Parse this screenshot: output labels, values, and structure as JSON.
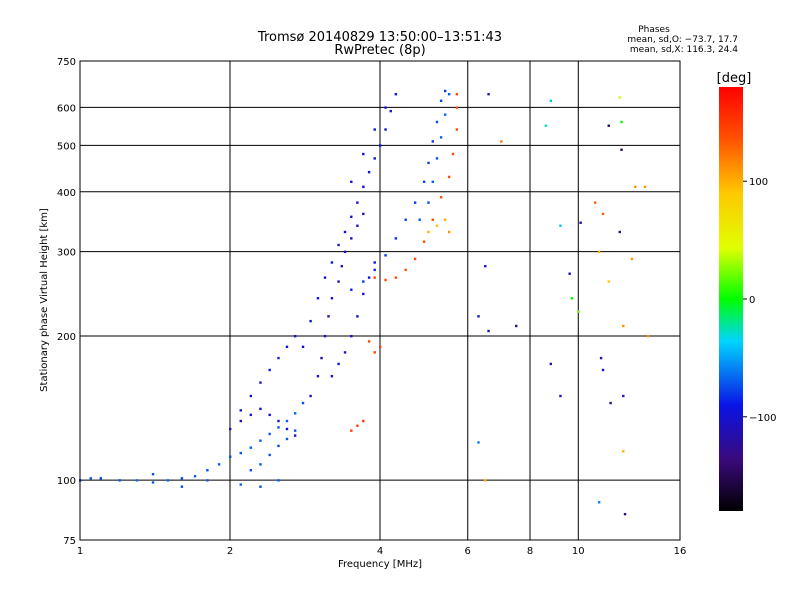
{
  "chart_data": {
    "type": "scatter",
    "title": "Tromsø 20140829 13:50:00–13:51:43",
    "subtitle": "RwPretec (8p)",
    "xlabel": "Frequency [MHz]",
    "ylabel": "Stationary phase Virtual Height [km]",
    "x_scale": "log",
    "y_scale": "log",
    "xlim": [
      1,
      16
    ],
    "ylim": [
      75,
      750
    ],
    "x_ticks": [
      1,
      2,
      4,
      6,
      8,
      10,
      16
    ],
    "y_ticks": [
      75,
      100,
      200,
      300,
      400,
      500,
      600,
      750
    ],
    "grid": true,
    "stats": {
      "heading": "Phases",
      "line_o": "mean, sd,O: −73.7, 17.7",
      "line_x": "mean, sd,X: 116.3, 24.4"
    },
    "colorbar": {
      "label": "[deg]",
      "range": [
        -180,
        180
      ],
      "ticks": [
        100,
        0,
        -100
      ]
    },
    "series": [
      {
        "points": [
          [
            1.0,
            100,
            -80
          ],
          [
            1.05,
            101,
            -70
          ],
          [
            1.1,
            101,
            -75
          ],
          [
            1.2,
            100,
            -70
          ],
          [
            1.3,
            100,
            -65
          ],
          [
            1.4,
            99,
            -70
          ],
          [
            1.5,
            100,
            -65
          ],
          [
            1.6,
            101,
            -75
          ],
          [
            1.7,
            102,
            -70
          ],
          [
            1.8,
            105,
            -72
          ],
          [
            1.9,
            108,
            -70
          ],
          [
            2.0,
            112,
            -75
          ],
          [
            2.1,
            114,
            -72
          ],
          [
            2.2,
            117,
            -70
          ],
          [
            2.3,
            121,
            -68
          ],
          [
            2.4,
            125,
            -70
          ],
          [
            2.5,
            129,
            -72
          ],
          [
            2.6,
            133,
            -70
          ],
          [
            2.7,
            138,
            -68
          ],
          [
            2.8,
            145,
            -75
          ],
          [
            2.2,
            105,
            -75
          ],
          [
            2.3,
            108,
            -70
          ],
          [
            2.4,
            113,
            -72
          ],
          [
            2.5,
            118,
            -75
          ],
          [
            2.6,
            122,
            -70
          ],
          [
            2.7,
            127,
            -72
          ],
          [
            1.4,
            103,
            -72
          ],
          [
            1.6,
            97,
            -75
          ],
          [
            1.8,
            100,
            -70
          ],
          [
            2.1,
            98,
            -68
          ],
          [
            2.3,
            97,
            -75
          ],
          [
            2.5,
            100,
            -70
          ],
          [
            2.1,
            140,
            -90
          ],
          [
            2.2,
            150,
            -95
          ],
          [
            2.3,
            160,
            -92
          ],
          [
            2.4,
            170,
            -88
          ],
          [
            2.5,
            180,
            -85
          ],
          [
            2.6,
            190,
            -90
          ],
          [
            2.7,
            200,
            -95
          ],
          [
            2.0,
            128,
            -100
          ],
          [
            2.1,
            133,
            -105
          ],
          [
            2.2,
            137,
            -100
          ],
          [
            2.3,
            141,
            -102
          ],
          [
            2.4,
            137,
            -98
          ],
          [
            2.5,
            133,
            -100
          ],
          [
            2.6,
            128,
            -104
          ],
          [
            2.7,
            124,
            -100
          ]
        ]
      },
      {
        "points": [
          [
            2.9,
            150,
            -110
          ],
          [
            3.0,
            165,
            -112
          ],
          [
            3.05,
            180,
            -115
          ],
          [
            3.1,
            200,
            -110
          ],
          [
            3.15,
            220,
            -108
          ],
          [
            3.2,
            240,
            -112
          ],
          [
            3.3,
            260,
            -115
          ],
          [
            3.35,
            280,
            -110
          ],
          [
            3.4,
            300,
            -108
          ],
          [
            3.5,
            320,
            -112
          ],
          [
            3.6,
            340,
            -110
          ],
          [
            3.7,
            360,
            -115
          ],
          [
            2.8,
            190,
            -95
          ],
          [
            2.9,
            215,
            -98
          ],
          [
            3.0,
            240,
            -100
          ],
          [
            3.1,
            265,
            -95
          ],
          [
            3.2,
            285,
            -98
          ],
          [
            3.3,
            310,
            -100
          ],
          [
            3.2,
            165,
            -100
          ],
          [
            3.3,
            175,
            -98
          ],
          [
            3.4,
            185,
            -100
          ],
          [
            3.5,
            200,
            -102
          ],
          [
            3.6,
            220,
            -100
          ],
          [
            3.7,
            245,
            -98
          ],
          [
            3.8,
            265,
            -100
          ],
          [
            3.9,
            285,
            -95
          ],
          [
            3.4,
            330,
            -95
          ],
          [
            3.5,
            355,
            -98
          ],
          [
            3.6,
            380,
            -100
          ],
          [
            3.7,
            410,
            -95
          ],
          [
            3.8,
            440,
            -98
          ],
          [
            3.9,
            470,
            -100
          ],
          [
            4.0,
            500,
            -95
          ],
          [
            4.1,
            540,
            -98
          ],
          [
            4.2,
            590,
            -100
          ],
          [
            4.3,
            640,
            -96
          ],
          [
            3.5,
            420,
            -100
          ],
          [
            3.7,
            480,
            -100
          ],
          [
            3.9,
            540,
            -98
          ],
          [
            4.1,
            600,
            -95
          ]
        ]
      },
      {
        "points": [
          [
            3.5,
            250,
            -85
          ],
          [
            3.7,
            260,
            -80
          ],
          [
            3.9,
            275,
            -85
          ],
          [
            4.1,
            295,
            -80
          ],
          [
            4.3,
            320,
            -82
          ],
          [
            4.5,
            350,
            -78
          ],
          [
            4.7,
            380,
            -80
          ],
          [
            4.9,
            420,
            -75
          ],
          [
            5.0,
            460,
            -78
          ],
          [
            5.1,
            510,
            -80
          ],
          [
            5.2,
            560,
            -75
          ],
          [
            5.3,
            620,
            -78
          ],
          [
            5.4,
            650,
            -80
          ],
          [
            4.8,
            350,
            -70
          ],
          [
            5.0,
            380,
            -72
          ],
          [
            5.1,
            420,
            -70
          ],
          [
            5.2,
            470,
            -72
          ],
          [
            5.3,
            520,
            -70
          ],
          [
            5.4,
            580,
            -68
          ],
          [
            5.5,
            640,
            -70
          ]
        ]
      },
      {
        "points": [
          [
            3.9,
            265,
            140
          ],
          [
            4.1,
            262,
            140
          ],
          [
            4.3,
            265,
            138
          ],
          [
            4.5,
            275,
            140
          ],
          [
            4.7,
            290,
            142
          ],
          [
            4.9,
            315,
            140
          ],
          [
            5.1,
            350,
            138
          ],
          [
            5.3,
            390,
            140
          ],
          [
            5.5,
            430,
            138
          ],
          [
            5.6,
            480,
            140
          ],
          [
            5.7,
            540,
            138
          ],
          [
            5.7,
            600,
            140
          ],
          [
            5.7,
            640,
            142
          ],
          [
            3.9,
            185,
            145
          ],
          [
            4.0,
            190,
            140
          ],
          [
            3.8,
            195,
            142
          ],
          [
            3.5,
            127,
            148
          ],
          [
            3.6,
            130,
            145
          ],
          [
            3.7,
            133,
            148
          ],
          [
            5.0,
            330,
            100
          ],
          [
            5.2,
            340,
            95
          ],
          [
            5.4,
            350,
            100
          ],
          [
            5.5,
            330,
            110
          ]
        ]
      },
      {
        "points": [
          [
            6.6,
            640,
            -120
          ],
          [
            7.0,
            510,
            120
          ],
          [
            8.8,
            620,
            -40
          ],
          [
            8.6,
            550,
            -30
          ],
          [
            9.2,
            340,
            -40
          ],
          [
            9.6,
            270,
            -100
          ],
          [
            10.1,
            345,
            -120
          ],
          [
            10.8,
            380,
            130
          ],
          [
            11.2,
            360,
            130
          ],
          [
            11.5,
            550,
            -150
          ],
          [
            12.2,
            490,
            -150
          ],
          [
            12.2,
            560,
            0
          ],
          [
            12.1,
            630,
            50
          ],
          [
            13.0,
            410,
            110
          ],
          [
            13.6,
            410,
            110
          ],
          [
            12.8,
            290,
            110
          ],
          [
            11.0,
            300,
            100
          ],
          [
            11.5,
            260,
            90
          ],
          [
            9.7,
            240,
            0
          ],
          [
            10.0,
            225,
            20
          ],
          [
            12.3,
            210,
            110
          ],
          [
            12.1,
            330,
            -140
          ],
          [
            13.8,
            200,
            110
          ],
          [
            8.8,
            175,
            -120
          ],
          [
            11.1,
            180,
            -110
          ],
          [
            9.2,
            150,
            -100
          ],
          [
            11.2,
            170,
            -100
          ],
          [
            11.6,
            145,
            -120
          ],
          [
            12.3,
            150,
            -110
          ],
          [
            6.6,
            205,
            -100
          ],
          [
            7.5,
            210,
            -130
          ],
          [
            6.3,
            220,
            -100
          ],
          [
            6.5,
            280,
            -100
          ],
          [
            6.3,
            120,
            -60
          ],
          [
            6.5,
            100,
            100
          ],
          [
            11.0,
            90,
            -60
          ],
          [
            12.4,
            85,
            -130
          ],
          [
            12.3,
            115,
            100
          ]
        ]
      }
    ]
  }
}
